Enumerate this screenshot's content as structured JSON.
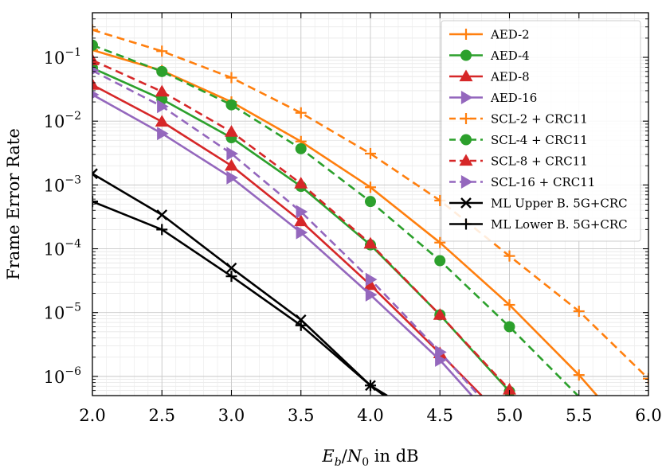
{
  "chart_data": {
    "type": "line",
    "title": "",
    "xlabel": "E_b/N_0 in dB",
    "xlabel_parts": {
      "e": "E",
      "b": "b",
      "slash": "/",
      "n": "N",
      "zero": "0",
      "suffix": " in dB"
    },
    "ylabel": "Frame Error Rate",
    "x_scale": "linear",
    "y_scale": "log",
    "xlim": [
      2.0,
      6.0
    ],
    "ylim": [
      5e-07,
      0.5
    ],
    "x_ticks": [
      2.0,
      2.5,
      3.0,
      3.5,
      4.0,
      4.5,
      5.0,
      5.5,
      6.0
    ],
    "x_tick_labels": [
      "2.0",
      "2.5",
      "3.0",
      "3.5",
      "4.0",
      "4.5",
      "5.0",
      "5.5",
      "6.0"
    ],
    "y_ticks": [
      {
        "value": 1e-06,
        "base": "10",
        "exp": "−6"
      },
      {
        "value": 1e-05,
        "base": "10",
        "exp": "−5"
      },
      {
        "value": 0.0001,
        "base": "10",
        "exp": "−4"
      },
      {
        "value": 0.001,
        "base": "10",
        "exp": "−3"
      },
      {
        "value": 0.01,
        "base": "10",
        "exp": "−2"
      },
      {
        "value": 0.1,
        "base": "10",
        "exp": "−1"
      }
    ],
    "grid": true,
    "legend_position": "top-right",
    "series": [
      {
        "name": "AED-2",
        "color": "#ff7f0e",
        "dash": "solid",
        "marker": "plus",
        "x": [
          2.0,
          2.5,
          3.0,
          3.5,
          4.0,
          4.5,
          5.0,
          5.5,
          5.63
        ],
        "y": [
          0.13,
          0.062,
          0.02,
          0.0048,
          0.00092,
          0.000125,
          1.32e-05,
          1.05e-06,
          5e-07
        ]
      },
      {
        "name": "AED-4",
        "color": "#2ca02c",
        "dash": "solid",
        "marker": "circle",
        "x": [
          2.0,
          2.5,
          3.0,
          3.5,
          4.0,
          4.5,
          5.0,
          5.03
        ],
        "y": [
          0.068,
          0.022,
          0.0055,
          0.00095,
          0.000115,
          9.2e-06,
          5.8e-07,
          5e-07
        ]
      },
      {
        "name": "AED-8",
        "color": "#d62728",
        "dash": "solid",
        "marker": "triangle",
        "x": [
          2.0,
          2.5,
          3.0,
          3.5,
          4.0,
          4.5,
          4.8
        ],
        "y": [
          0.037,
          0.0098,
          0.002,
          0.00027,
          2.7e-05,
          2.3e-06,
          5e-07
        ]
      },
      {
        "name": "AED-16",
        "color": "#9467bd",
        "dash": "solid",
        "marker": "triangle-right",
        "x": [
          2.0,
          2.5,
          3.0,
          3.5,
          4.0,
          4.5,
          4.73
        ],
        "y": [
          0.026,
          0.0064,
          0.0013,
          0.00018,
          1.9e-05,
          1.8e-06,
          5e-07
        ]
      },
      {
        "name": "SCL-2 + CRC11",
        "color": "#ff7f0e",
        "dash": "dashed",
        "marker": "plus",
        "x": [
          2.0,
          2.5,
          3.0,
          3.5,
          4.0,
          4.5,
          5.0,
          5.5,
          6.0
        ],
        "y": [
          0.27,
          0.125,
          0.048,
          0.0135,
          0.0031,
          0.00057,
          7.7e-05,
          1.05e-05,
          9.2e-07
        ]
      },
      {
        "name": "SCL-4 + CRC11",
        "color": "#2ca02c",
        "dash": "dashed",
        "marker": "circle",
        "x": [
          2.0,
          2.5,
          3.0,
          3.5,
          4.0,
          4.5,
          5.0,
          5.5
        ],
        "y": [
          0.155,
          0.06,
          0.018,
          0.0037,
          0.00055,
          6.5e-05,
          6e-06,
          4.8e-07
        ]
      },
      {
        "name": "SCL-8 + CRC11",
        "color": "#d62728",
        "dash": "dashed",
        "marker": "triangle",
        "x": [
          2.0,
          2.5,
          3.0,
          3.5,
          4.0,
          4.5,
          5.0
        ],
        "y": [
          0.09,
          0.029,
          0.0068,
          0.00105,
          0.00012,
          9.2e-06,
          6.2e-07
        ]
      },
      {
        "name": "SCL-16 + CRC11",
        "color": "#9467bd",
        "dash": "dashed",
        "marker": "triangle-right",
        "x": [
          2.0,
          2.5,
          3.0,
          3.5,
          4.0,
          4.5,
          4.78
        ],
        "y": [
          0.062,
          0.017,
          0.0031,
          0.00038,
          3.3e-05,
          2.4e-06,
          5e-07
        ]
      },
      {
        "name": "ML Upper B. 5G+CRC",
        "color": "#000000",
        "dash": "solid",
        "marker": "x",
        "x": [
          2.0,
          2.5,
          3.0,
          3.5,
          4.0,
          4.1
        ],
        "y": [
          0.0015,
          0.00034,
          5e-05,
          7.7e-06,
          7.2e-07,
          5e-07
        ]
      },
      {
        "name": "ML Lower B. 5G+CRC",
        "color": "#000000",
        "dash": "solid",
        "marker": "plus",
        "x": [
          2.0,
          2.5,
          3.0,
          3.5,
          4.0,
          4.12
        ],
        "y": [
          0.00055,
          0.0002,
          3.7e-05,
          6.3e-06,
          7.2e-07,
          5e-07
        ]
      }
    ]
  }
}
